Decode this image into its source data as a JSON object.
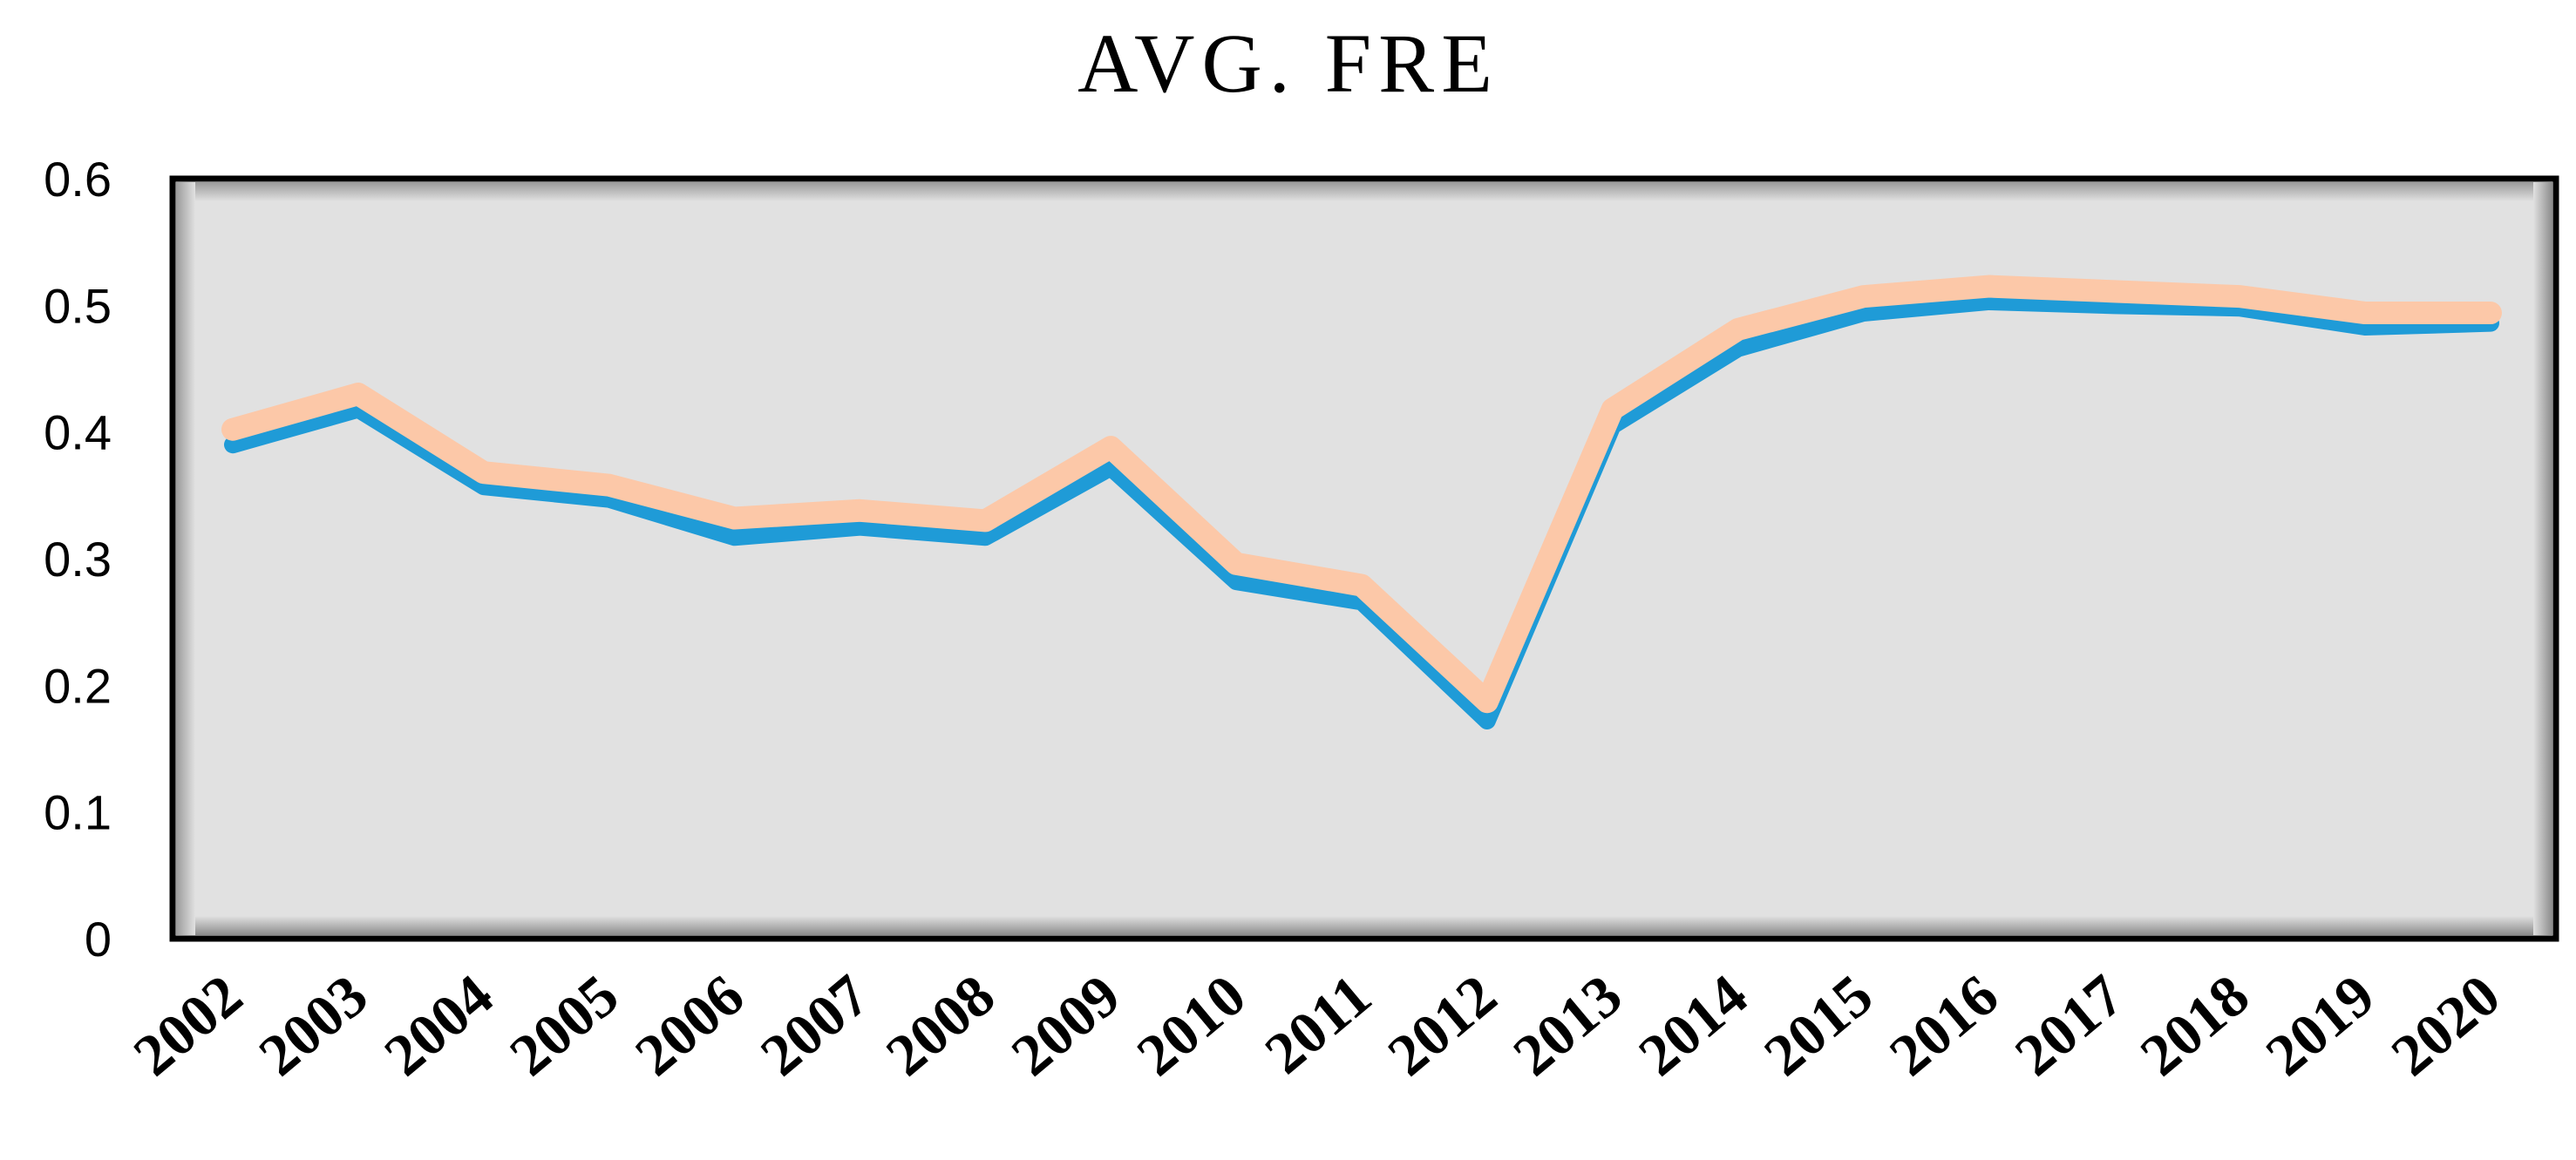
{
  "chart_data": {
    "type": "line",
    "title": "AVG. FRE",
    "xlabel": "",
    "ylabel": "",
    "categories": [
      "2002",
      "2003",
      "2004",
      "2005",
      "2006",
      "2007",
      "2008",
      "2009",
      "2010",
      "2011",
      "2012",
      "2013",
      "2014",
      "2015",
      "2016",
      "2017",
      "2018",
      "2019",
      "2020"
    ],
    "series": [
      {
        "color": "#1F9BD7",
        "values": [
          0.39,
          0.418,
          0.357,
          0.347,
          0.317,
          0.325,
          0.317,
          0.372,
          0.282,
          0.266,
          0.172,
          0.405,
          0.466,
          0.494,
          0.503,
          0.5,
          0.498,
          0.483,
          0.486
        ]
      },
      {
        "color": "#FCC8A8",
        "values": [
          0.402,
          0.43,
          0.368,
          0.358,
          0.332,
          0.338,
          0.33,
          0.388,
          0.296,
          0.279,
          0.187,
          0.418,
          0.481,
          0.507,
          0.515,
          0.511,
          0.507,
          0.494,
          0.494
        ]
      }
    ],
    "yticks": [
      "0",
      "0.1",
      "0.2",
      "0.3",
      "0.4",
      "0.5",
      "0.6"
    ],
    "ylim": [
      0,
      0.6
    ],
    "grid": "vertical",
    "legend": "none",
    "plot_background": "#E1E1E1"
  }
}
